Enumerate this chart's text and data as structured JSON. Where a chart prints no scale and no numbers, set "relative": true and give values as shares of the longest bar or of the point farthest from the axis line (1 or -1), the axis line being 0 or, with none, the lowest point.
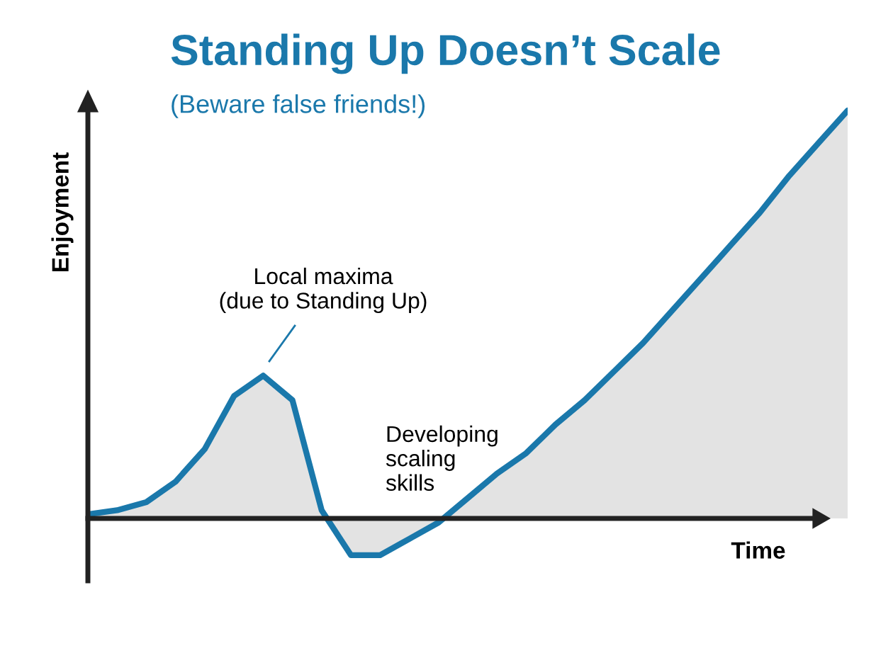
{
  "chart_data": {
    "type": "area",
    "title": "Standing Up Doesn’t Scale",
    "subtitle": "(Beware false friends!)",
    "xlabel": "Time",
    "ylabel": "Enjoyment",
    "relative": true,
    "categories": [
      null,
      null,
      null,
      null,
      null,
      null,
      null,
      null,
      null,
      null,
      null,
      null,
      null,
      null,
      null,
      null,
      null,
      null,
      null,
      null,
      null,
      null,
      null,
      null,
      null,
      null,
      null
    ],
    "series": [
      {
        "color": "#1a78ab",
        "values": [
          0.01,
          0.02,
          0.04,
          0.09,
          0.17,
          0.3,
          0.35,
          0.29,
          0.02,
          -0.09,
          -0.09,
          -0.05,
          -0.01,
          0.05,
          0.11,
          0.16,
          0.23,
          0.29,
          0.36,
          0.43,
          0.51,
          0.59,
          0.67,
          0.75,
          0.84,
          0.92,
          1.0
        ]
      }
    ],
    "annotations": [
      "Local maxima\n(due to Standing Up)",
      "Developing\nscaling\nskills"
    ],
    "legend": false
  }
}
